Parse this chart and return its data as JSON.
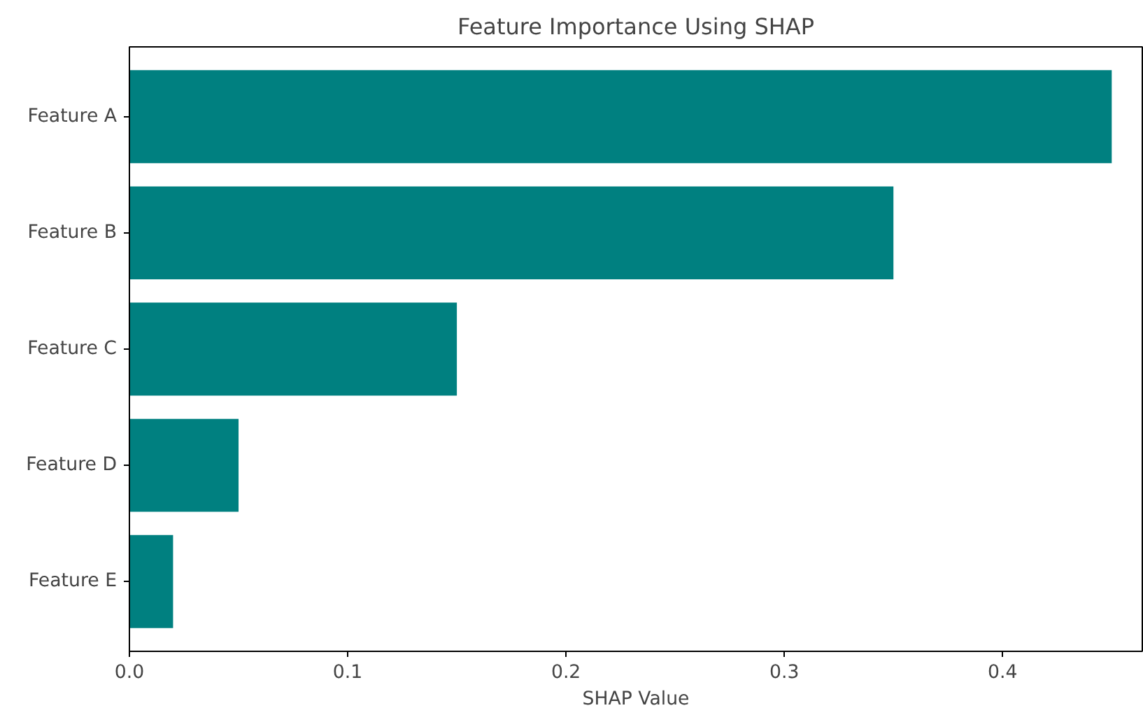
{
  "chart_data": {
    "type": "bar",
    "orientation": "horizontal",
    "title": "Feature Importance Using SHAP",
    "xlabel": "SHAP Value",
    "categories": [
      "Feature A",
      "Feature B",
      "Feature C",
      "Feature D",
      "Feature E"
    ],
    "values": [
      0.45,
      0.35,
      0.15,
      0.05,
      0.02
    ],
    "color": "#008080",
    "xlim": [
      0,
      0.464
    ],
    "xticks": [
      {
        "value": 0,
        "label": "0.0"
      },
      0.1,
      0.2,
      0.3,
      0.4
    ],
    "grid": false
  }
}
